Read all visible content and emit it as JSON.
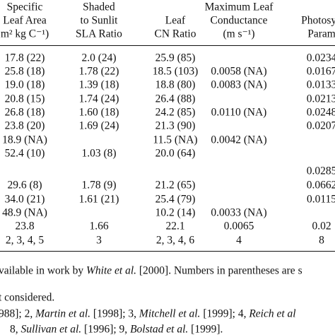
{
  "table": {
    "header": [
      [
        "Specific",
        "Leaf Area",
        "m² kg C⁻¹)"
      ],
      [
        "Shaded",
        "to Sunlit",
        "SLA Ratio"
      ],
      [
        "Leaf",
        "CN Ratio"
      ],
      [
        "Maximum Leaf",
        "Conductance",
        "(m s⁻¹)"
      ],
      [
        "Photosyn",
        "Param"
      ]
    ],
    "rows": [
      [
        "17.8 (22)",
        "2.0 (24)",
        "25.9 (85)",
        null,
        "0.0234"
      ],
      [
        "25.8 (18)",
        "1.78 (22)",
        "18.5 (103)",
        "0.0058 (NA)",
        "0.0167"
      ],
      [
        "19.0 (18)",
        "1.39 (18)",
        "18.8 (80)",
        "0.0083 (NA)",
        "0.0133"
      ],
      [
        "20.8 (15)",
        "1.74 (24)",
        "26.4 (88)",
        null,
        "0.0213"
      ],
      [
        "26.8 (18)",
        "1.60 (18)",
        "24.2 (85)",
        "0.0110 (NA)",
        "0.0248"
      ],
      [
        "23.8 (20)",
        "1.69 (24)",
        "21.3 (90)",
        null,
        "0.0207"
      ],
      [
        "18.9 (NA)",
        null,
        "11.5 (NA)",
        "0.0042 (NA)",
        null
      ],
      [
        "52.4 (10)",
        "1.03 (8)",
        "20.0 (64)",
        null,
        null
      ],
      [
        null,
        null,
        null,
        null,
        "0.0285"
      ],
      [
        "29.6 (8)",
        "1.78 (9)",
        "21.2 (65)",
        null,
        "0.0662"
      ],
      [
        "34.0 (21)",
        "1.61 (21)",
        "25.4 (79)",
        null,
        "0.0115"
      ],
      [
        "48.9 (NA)",
        null,
        "10.2 (14)",
        "0.0033 (NA)",
        null
      ],
      [
        "23.8",
        "1.66",
        "22.1",
        "0.0065",
        "0.02"
      ],
      [
        "2, 3, 4, 5",
        "3",
        "2, 3, 4, 6",
        "4",
        "8"
      ]
    ]
  },
  "notes": [
    [
      "vailable in work by ",
      "White et al.",
      " [2000]. Numbers in parentheses are s"
    ],
    [
      "t considered."
    ],
    [
      "988]; 2, ",
      "Martin et al.",
      " [1998]; 3, ",
      "Mitchell et al.",
      " [1999]; 4, ",
      "Reich et al"
    ],
    [
      "8, ",
      "Sullivan et al.",
      " [1996]; 9, ",
      "Bolstad et al.",
      " [1999]."
    ]
  ]
}
